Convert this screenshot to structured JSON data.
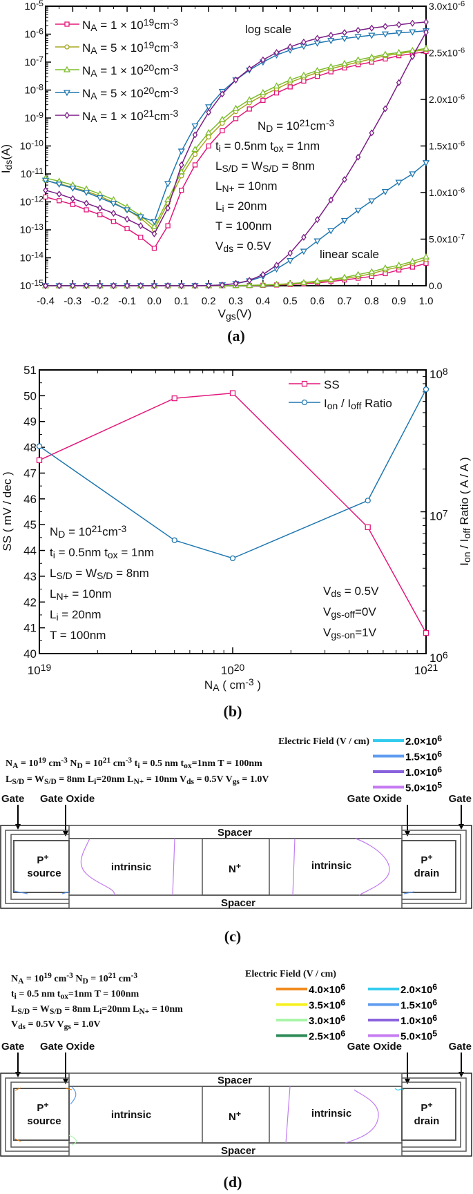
{
  "figure": {
    "panel_labels": {
      "a": "(a)",
      "b": "(b)",
      "c": "(c)",
      "d": "(d)"
    }
  },
  "chart_data": [
    {
      "type": "line",
      "panel": "a",
      "xlabel": "V_{gs}(V)",
      "ylabel": "I_{ds}(A)",
      "y2label": "",
      "xlim": [
        -0.4,
        1.0
      ],
      "ylim_left_log": [
        1e-15,
        1e-05
      ],
      "ylim_right_linear": [
        0,
        3e-06
      ],
      "y_left_scale": "log",
      "y_right_scale": "linear",
      "grid": false,
      "legend_position": "top-left",
      "x_ticks": [
        "-0.4",
        "-0.3",
        "-0.2",
        "-0.1",
        "0.0",
        "0.1",
        "0.2",
        "0.3",
        "0.4",
        "0.5",
        "0.6",
        "0.7",
        "0.8",
        "0.9",
        "1.0"
      ],
      "y_left_ticks": [
        "10^{-5}",
        "10^{-6}",
        "10^{-7}",
        "10^{-8}",
        "10^{-9}",
        "10^{-10}",
        "10^{-11}",
        "10^{-12}",
        "10^{-13}",
        "10^{-14}",
        "10^{-15}"
      ],
      "y_right_ticks": [
        "3.0x10^{-6}",
        "2.5x10^{-6}",
        "2.0x10^{-6}",
        "1.5x10^{-6}",
        "1.0x10^{-6}",
        "5.0x10^{-7}",
        "0.0"
      ],
      "annotations": {
        "log_scale": "log scale",
        "linear_scale": "linear scale",
        "params": [
          "N_{D} = 10^{21}cm^{-3}",
          "t_{i} = 0.5nm t_{ox} = 1nm",
          "L_{S/D} = W_{S/D} = 8nm",
          "L_{N^{+}} = 10nm",
          "L_{i} = 20nm",
          "T = 100nm",
          "V_{ds} = 0.5V"
        ]
      },
      "x": [
        -0.4,
        -0.35,
        -0.3,
        -0.25,
        -0.2,
        -0.15,
        -0.1,
        -0.05,
        0.0,
        0.05,
        0.1,
        0.15,
        0.2,
        0.25,
        0.3,
        0.35,
        0.4,
        0.45,
        0.5,
        0.55,
        0.6,
        0.65,
        0.7,
        0.75,
        0.8,
        0.85,
        0.9,
        0.95,
        1.0
      ],
      "series": [
        {
          "name": "N_{A} = 1 × 10^{19}cm^{-3}",
          "color": "#e3177a",
          "marker": "square",
          "values": [
            1.5e-12,
            1.1e-12,
            8.1e-13,
            5.2e-13,
            3.5e-13,
            2e-13,
            1.1e-13,
            5.4e-14,
            2.2e-14,
            1.4e-13,
            2.6e-12,
            2.1e-11,
            1e-10,
            3.5e-10,
            9.5e-10,
            2.1e-09,
            4.3e-09,
            7.9e-09,
            1.3e-08,
            2.1e-08,
            3.1e-08,
            4.5e-08,
            6.2e-08,
            8.1e-08,
            1e-07,
            1.3e-07,
            1.7e-07,
            2e-07,
            2.4e-07
          ]
        },
        {
          "name": "N_{A} = 5 × 10^{19}cm^{-3}",
          "color": "#a7a51f",
          "marker": "circle",
          "values": [
            5.8e-12,
            4.5e-12,
            3.3e-12,
            2.4e-12,
            1.6e-12,
            9.5e-13,
            5.2e-13,
            2.6e-13,
            1e-13,
            9e-13,
            8.5e-12,
            5e-11,
            2.1e-10,
            6.5e-10,
            1.7e-09,
            3.5e-09,
            6.5e-09,
            1.1e-08,
            1.9e-08,
            2.9e-08,
            4.2e-08,
            5.8e-08,
            7.7e-08,
            1e-07,
            1.3e-07,
            1.7e-07,
            2e-07,
            2.4e-07,
            2.8e-07
          ]
        },
        {
          "name": "N_{A} = 1 × 10^{20}cm^{-3}",
          "color": "#7dbd2b",
          "marker": "triangle-up",
          "values": [
            7.1e-12,
            5.5e-12,
            4e-12,
            2.9e-12,
            1.9e-12,
            1.2e-12,
            6.5e-13,
            3.2e-13,
            1.3e-13,
            1.2e-12,
            1.2e-11,
            7.6e-11,
            3e-10,
            8.9e-10,
            2.2e-09,
            4.5e-09,
            8.1e-09,
            1.4e-08,
            2.3e-08,
            3.4e-08,
            5e-08,
            6.8e-08,
            8.9e-08,
            1.2e-07,
            1.5e-07,
            1.9e-07,
            2.2e-07,
            2.6e-07,
            3.1e-07
          ]
        },
        {
          "name": "N_{A} = 5 × 10^{20}cm^{-3}",
          "color": "#1f77b0",
          "marker": "triangle-down",
          "values": [
            5.9e-12,
            4.3e-12,
            3.1e-12,
            2.2e-12,
            1.4e-12,
            8.8e-13,
            5.2e-13,
            2.9e-13,
            2e-13,
            4.5e-12,
            6.5e-11,
            5.2e-10,
            2.5e-09,
            8.9e-09,
            2.3e-08,
            5.2e-08,
            1e-07,
            1.8e-07,
            2.7e-07,
            3.7e-07,
            4.8e-07,
            5.9e-07,
            7e-07,
            8.1e-07,
            9.1e-07,
            1.01e-06,
            1.11e-06,
            1.2e-06,
            1.32e-06
          ]
        },
        {
          "name": "N_{A} = 1 × 10^{21}cm^{-3}",
          "color": "#7b1c86",
          "marker": "diamond",
          "values": [
            2.6e-12,
            1.9e-12,
            1.3e-12,
            8.9e-13,
            6e-13,
            3.9e-13,
            2.4e-13,
            1.4e-13,
            7.2e-14,
            6e-13,
            2.1e-11,
            2.5e-10,
            1.6e-09,
            7.2e-09,
            2.3e-08,
            5.7e-08,
            1.2e-07,
            2.2e-07,
            3.5e-07,
            5.2e-07,
            7.1e-07,
            9.2e-07,
            1.14e-06,
            1.38e-06,
            1.64e-06,
            1.9e-06,
            2.18e-06,
            2.46e-06,
            2.72e-06
          ]
        }
      ]
    },
    {
      "type": "line",
      "panel": "b",
      "xlabel": "N_{A} ( cm^{-3} )",
      "ylabel": "SS ( mV / dec )",
      "y2label": "I_{on} / I_{off} Ratio ( A / A )",
      "x_scale": "log",
      "xlim": [
        1e+19,
        1e+21
      ],
      "ylim": [
        40,
        51
      ],
      "y2lim": [
        1000000.0,
        100000000.0
      ],
      "y2_scale": "log",
      "grid": false,
      "legend_position": "top-right",
      "x_ticks": [
        "10^{19}",
        "10^{20}",
        "10^{21}"
      ],
      "y_ticks": [
        "40",
        "41",
        "42",
        "43",
        "44",
        "45",
        "46",
        "47",
        "48",
        "49",
        "50",
        "51"
      ],
      "y2_ticks": [
        "10^{6}",
        "10^{7}",
        "10^{8}"
      ],
      "x": [
        1e+19,
        5e+19,
        1e+20,
        5e+20,
        1e+21
      ],
      "series": [
        {
          "name": "SS",
          "axis": "left",
          "color": "#e3177a",
          "marker": "square",
          "values": [
            47.5,
            49.9,
            50.1,
            44.9,
            40.8
          ]
        },
        {
          "name": "I_{on} / I_{off} Ratio",
          "axis": "right",
          "color": "#1f77b0",
          "marker": "circle",
          "values": [
            29000000.0,
            6300000.0,
            4700000.0,
            12000000.0,
            73000000.0
          ]
        }
      ],
      "annotations": {
        "params": [
          "N_{D} = 10^{21}cm^{-3}",
          "t_{i} = 0.5nm t_{ox} = 1nm",
          "L_{S/D} = W_{S/D} = 8nm",
          "L_{N^{+}} = 10nm",
          "L_{i} = 20nm",
          "T = 100nm"
        ],
        "bias": [
          "V_{ds} = 0.5V",
          "V_{gs-off}=0V",
          "V_{gs-on}=1V"
        ]
      }
    }
  ],
  "panel_c": {
    "legend_title": "Electric Field  (V / cm)",
    "legend": [
      {
        "label": "2.0×10^{6}",
        "color": "#33ccee"
      },
      {
        "label": "1.5×10^{6}",
        "color": "#5e9cef"
      },
      {
        "label": "1.0×10^{6}",
        "color": "#8a62dd"
      },
      {
        "label": "5.0×10^{5}",
        "color": "#c77cf2"
      }
    ],
    "params": [
      "N_{A} = 10^{19} cm^{-3} N_{D} = 10^{21} cm^{-3} t_{i} = 0.5 nm t_{ox}=1nm T = 100nm",
      "L_{S/D} = W_{S/D} = 8nm L_{i}=20nm  L_{N+} = 10nm V_{ds} = 0.5V V_{gs} = 1.0V"
    ]
  },
  "panel_d": {
    "legend_title": "Electric Field  (V / cm)",
    "legend": [
      {
        "label": "4.0×10^{6}",
        "color": "#f08a1e"
      },
      {
        "label": "3.5×10^{6}",
        "color": "#f5f01e"
      },
      {
        "label": "3.0×10^{6}",
        "color": "#a8f5a8"
      },
      {
        "label": "2.5×10^{6}",
        "color": "#2e8b57"
      },
      {
        "label": "2.0×10^{6}",
        "color": "#33ccee"
      },
      {
        "label": "1.5×10^{6}",
        "color": "#5e9cef"
      },
      {
        "label": "1.0×10^{6}",
        "color": "#8a62dd"
      },
      {
        "label": "5.0×10^{5}",
        "color": "#c77cf2"
      }
    ],
    "params": [
      "N_{A} = 10^{19} cm^{-3} N_{D} = 10^{21} cm^{-3}",
      "t_{i} = 0.5 nm t_{ox}=1nm T = 100nm",
      "L_{S/D} = W_{S/D} = 8nm L_{i}=20nm  L_{N+} = 10nm",
      "V_{ds} = 0.5V V_{gs} = 1.0V"
    ]
  },
  "device": {
    "gate": "Gate",
    "gate_oxide": "Gate Oxide",
    "spacer": "Spacer",
    "source": [
      "P^{+}",
      "source"
    ],
    "intrinsic": "intrinsic",
    "n_plus": "N^{+}",
    "drain": [
      "P^{+}",
      "drain"
    ]
  }
}
